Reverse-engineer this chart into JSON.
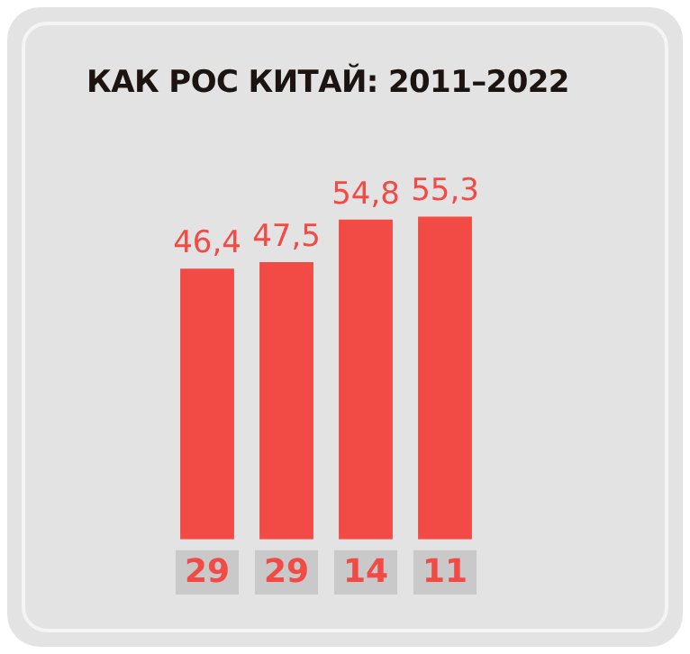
{
  "chart_data": {
    "type": "bar",
    "title": "КАК РОС КИТАЙ: 2011–2022",
    "categories": [
      "29",
      "29",
      "14",
      "11"
    ],
    "series": [
      {
        "color": "#f24a45",
        "values": [
          46.4,
          47.5,
          54.8,
          55.3
        ],
        "value_labels": [
          "46,4",
          "47,5",
          "54,8",
          "55,3"
        ]
      }
    ],
    "tick_labels": "x",
    "grid": false,
    "legend": false
  }
}
